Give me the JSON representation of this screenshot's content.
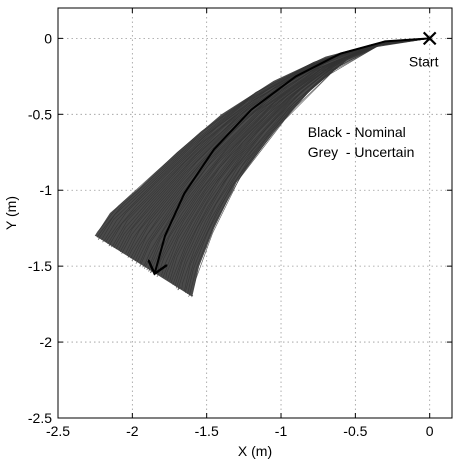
{
  "chart_data": {
    "type": "line",
    "title": "",
    "xlabel": "X (m)",
    "ylabel": "Y (m)",
    "xlim": [
      -2.5,
      0.15
    ],
    "ylim": [
      -2.5,
      0.2
    ],
    "xticks": [
      -2.5,
      -2,
      -1.5,
      -1,
      -0.5,
      0
    ],
    "yticks": [
      -2.5,
      -2,
      -1.5,
      -1,
      -0.5,
      0
    ],
    "xtick_labels": [
      "-2.5",
      "-2",
      "-1.5",
      "-1",
      "-0.5",
      "0"
    ],
    "ytick_labels": [
      "-2.5",
      "-2",
      "-1.5",
      "-1",
      "-0.5",
      "0"
    ],
    "grid": true,
    "colors": {
      "nominal": "#000000",
      "uncertain": "#4a4a4a",
      "grid": "#9a9a9a"
    },
    "series": [
      {
        "name": "Nominal",
        "style": "line-with-arrow",
        "x": [
          0,
          -0.3,
          -0.6,
          -0.9,
          -1.2,
          -1.45,
          -1.65,
          -1.78,
          -1.85
        ],
        "y": [
          0,
          -0.02,
          -0.1,
          -0.25,
          -0.47,
          -0.73,
          -1.02,
          -1.3,
          -1.55
        ]
      },
      {
        "name": "Uncertain",
        "style": "band",
        "upper_x": [
          0,
          -0.35,
          -0.7,
          -1.05,
          -1.4,
          -1.7,
          -1.95,
          -2.15,
          -2.25
        ],
        "upper_y": [
          0,
          -0.03,
          -0.12,
          -0.28,
          -0.5,
          -0.75,
          -0.98,
          -1.15,
          -1.3
        ],
        "lower_x": [
          0,
          -0.3,
          -0.55,
          -0.8,
          -1.05,
          -1.3,
          -1.45,
          -1.55,
          -1.6
        ],
        "lower_y": [
          0,
          -0.03,
          -0.14,
          -0.34,
          -0.62,
          -0.95,
          -1.25,
          -1.5,
          -1.7
        ]
      }
    ],
    "annotations": {
      "start_marker": {
        "x": 0,
        "y": 0,
        "symbol": "x"
      },
      "start_label": "Start",
      "legend_line1": "Black - Nominal",
      "legend_line2": "Grey  - Uncertain",
      "legend_anchor": {
        "x": -0.82,
        "y": -0.65
      }
    }
  }
}
